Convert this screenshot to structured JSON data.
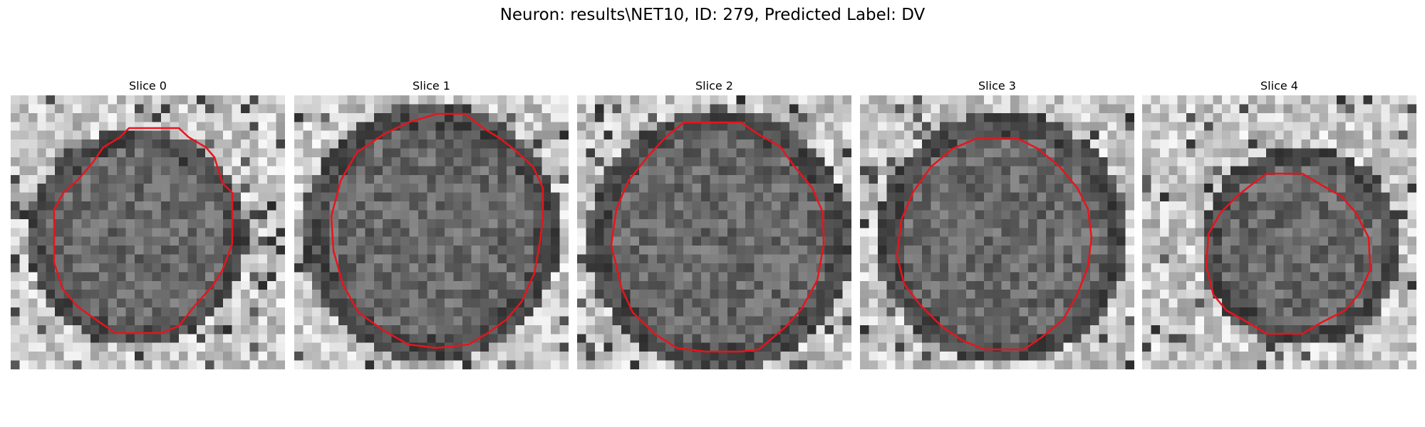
{
  "figure": {
    "title": "Neuron: results\\NET10, ID: 279, Predicted Label: DV"
  },
  "slices": [
    {
      "label": "Slice 0"
    },
    {
      "label": "Slice 1"
    },
    {
      "label": "Slice 2"
    },
    {
      "label": "Slice 3"
    },
    {
      "label": "Slice 4"
    }
  ],
  "colors": {
    "contour": "#e8141c",
    "background": "#ffffff"
  }
}
